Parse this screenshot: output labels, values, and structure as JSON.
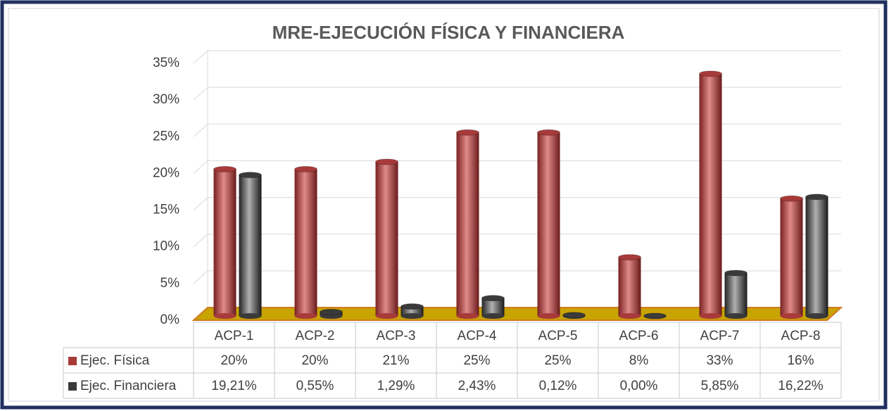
{
  "chart_data": {
    "type": "bar",
    "title": "MRE-EJECUCIÓN FÍSICA Y FINANCIERA",
    "categories": [
      "ACP-1",
      "ACP-2",
      "ACP-3",
      "ACP-4",
      "ACP-5",
      "ACP-6",
      "ACP-7",
      "ACP-8"
    ],
    "series": [
      {
        "name": "Ejec. Física",
        "color": "#a83a3a",
        "values": [
          20,
          20,
          21,
          25,
          25,
          8,
          33,
          16
        ],
        "value_labels": [
          "20%",
          "20%",
          "21%",
          "25%",
          "25%",
          "8%",
          "33%",
          "16%"
        ]
      },
      {
        "name": "Ejec. Financiera",
        "color": "#3a3a3a",
        "values": [
          19.21,
          0.55,
          1.29,
          2.43,
          0.12,
          0.0,
          5.85,
          16.22
        ],
        "value_labels": [
          "19,21%",
          "0,55%",
          "1,29%",
          "2,43%",
          "0,12%",
          "0,00%",
          "5,85%",
          "16,22%"
        ]
      }
    ],
    "ylim": [
      0,
      35
    ],
    "yticks": [
      {
        "value": 0,
        "label": "0%"
      },
      {
        "value": 5,
        "label": "5%"
      },
      {
        "value": 10,
        "label": "10%"
      },
      {
        "value": 15,
        "label": "15%"
      },
      {
        "value": 20,
        "label": "20%"
      },
      {
        "value": 25,
        "label": "25%"
      },
      {
        "value": 30,
        "label": "30%"
      },
      {
        "value": 35,
        "label": "35%"
      }
    ],
    "grid": true
  }
}
